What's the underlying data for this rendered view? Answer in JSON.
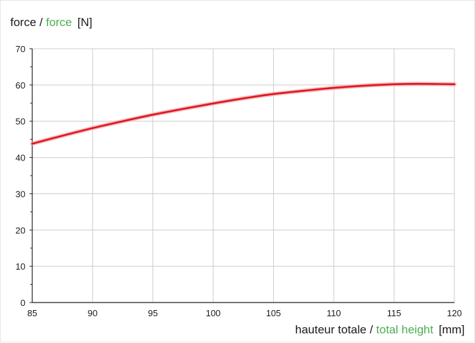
{
  "colors": {
    "curve": "#e0141e",
    "curve_glow": "#f3a0a4",
    "grid": "#cccccc",
    "axis": "#222222",
    "accent_green": "#4caf50"
  },
  "chart_data": {
    "type": "line",
    "title": "",
    "ylabel": {
      "fr": "force",
      "sep": " / ",
      "en": "force",
      "unit": "[N]"
    },
    "xlabel": {
      "fr": "hauteur totale",
      "sep": " / ",
      "en": "total height",
      "unit": "[mm]"
    },
    "xlim": [
      85,
      120
    ],
    "ylim": [
      0,
      70
    ],
    "grid": true,
    "x_ticks": [
      "85",
      "90",
      "95",
      "100",
      "105",
      "110",
      "115",
      "120"
    ],
    "y_ticks": [
      "0",
      "10",
      "20",
      "30",
      "40",
      "50",
      "60",
      "70"
    ],
    "series": [
      {
        "x": [
          85,
          87.5,
          90,
          92.5,
          95,
          97.5,
          100,
          102.5,
          105,
          107.5,
          110,
          112.5,
          115,
          116.5,
          117.5,
          120
        ],
        "y": [
          43.8,
          46.0,
          48.1,
          50.0,
          51.8,
          53.4,
          54.9,
          56.3,
          57.5,
          58.4,
          59.2,
          59.8,
          60.2,
          60.3,
          60.3,
          60.2
        ]
      }
    ]
  }
}
